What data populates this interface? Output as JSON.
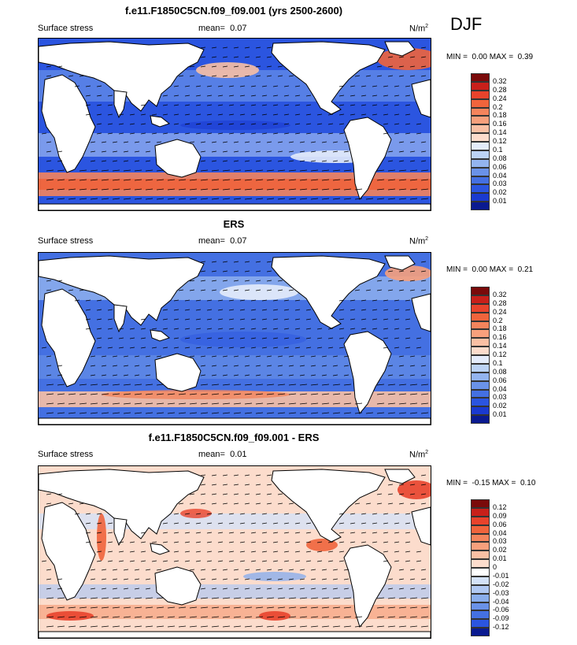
{
  "season": "DJF",
  "colors": {
    "land": "#ffffff",
    "ocean_low": "#2b55e0",
    "ocean_mid": "#bcd3f5",
    "ocean_high": "#e8603c"
  },
  "panels": [
    {
      "title": "f.e11.F1850C5CN.f09_f09.001 (yrs 2500-2600)",
      "left_label": "Surface stress",
      "mean_label": "mean=",
      "mean_value": "0.07",
      "units": "N/m",
      "units_sup": "2",
      "min_label": "MIN =",
      "min_value": "0.00",
      "max_label": "MAX =",
      "max_value": "0.39",
      "colorbar": {
        "labels": [
          "0.32",
          "0.28",
          "0.24",
          "0.2",
          "0.18",
          "0.16",
          "0.14",
          "0.12",
          "0.1",
          "0.08",
          "0.06",
          "0.04",
          "0.03",
          "0.02",
          "0.01"
        ],
        "colors": [
          "#7a0a0a",
          "#c8201a",
          "#e8432c",
          "#f0643c",
          "#f4845c",
          "#f7a07c",
          "#fac0a4",
          "#fcdccc",
          "#e4ecfb",
          "#bcd3f5",
          "#93b4ef",
          "#6a92e8",
          "#4470e2",
          "#2b55e0",
          "#1a3ad0",
          "#0a1a90"
        ]
      }
    },
    {
      "title": "ERS",
      "left_label": "Surface stress",
      "mean_label": "mean=",
      "mean_value": "0.07",
      "units": "N/m",
      "units_sup": "2",
      "min_label": "MIN =",
      "min_value": "0.00",
      "max_label": "MAX =",
      "max_value": "0.21",
      "colorbar": {
        "labels": [
          "0.32",
          "0.28",
          "0.24",
          "0.2",
          "0.18",
          "0.16",
          "0.14",
          "0.12",
          "0.1",
          "0.08",
          "0.06",
          "0.04",
          "0.03",
          "0.02",
          "0.01"
        ],
        "colors": [
          "#7a0a0a",
          "#c8201a",
          "#e8432c",
          "#f0643c",
          "#f4845c",
          "#f7a07c",
          "#fac0a4",
          "#fcdccc",
          "#e4ecfb",
          "#bcd3f5",
          "#93b4ef",
          "#6a92e8",
          "#4470e2",
          "#2b55e0",
          "#1a3ad0",
          "#0a1a90"
        ]
      }
    },
    {
      "title": "f.e11.F1850C5CN.f09_f09.001 - ERS",
      "left_label": "Surface stress",
      "mean_label": "mean=",
      "mean_value": "0.01",
      "units": "N/m",
      "units_sup": "2",
      "min_label": "MIN =",
      "min_value": "-0.15",
      "max_label": "MAX =",
      "max_value": "0.10",
      "colorbar": {
        "labels": [
          "0.12",
          "0.09",
          "0.06",
          "0.04",
          "0.03",
          "0.02",
          "0.01",
          "0",
          "-0.01",
          "-0.02",
          "-0.03",
          "-0.04",
          "-0.06",
          "-0.09",
          "-0.12"
        ],
        "colors": [
          "#7a0a0a",
          "#c8201a",
          "#e8432c",
          "#f0643c",
          "#f4845c",
          "#f7a07c",
          "#fac0a4",
          "#fcdccc",
          "#ffffff",
          "#d4e2f8",
          "#b0c8f2",
          "#8aaeec",
          "#6a92e8",
          "#4470e2",
          "#2b55e0",
          "#0a1a90"
        ]
      }
    }
  ],
  "chart_data": [
    {
      "type": "heatmap",
      "title": "f.e11.F1850C5CN.f09_f09.001 (yrs 2500-2600)",
      "variable": "Surface stress",
      "units": "N/m2",
      "mean": 0.07,
      "min": 0.0,
      "max": 0.39,
      "levels": [
        0.01,
        0.02,
        0.03,
        0.04,
        0.06,
        0.08,
        0.1,
        0.12,
        0.14,
        0.16,
        0.18,
        0.2,
        0.24,
        0.28,
        0.32
      ]
    },
    {
      "type": "heatmap",
      "title": "ERS",
      "variable": "Surface stress",
      "units": "N/m2",
      "mean": 0.07,
      "min": 0.0,
      "max": 0.21,
      "levels": [
        0.01,
        0.02,
        0.03,
        0.04,
        0.06,
        0.08,
        0.1,
        0.12,
        0.14,
        0.16,
        0.18,
        0.2,
        0.24,
        0.28,
        0.32
      ]
    },
    {
      "type": "heatmap",
      "title": "f.e11.F1850C5CN.f09_f09.001 - ERS",
      "variable": "Surface stress",
      "units": "N/m2",
      "mean": 0.01,
      "min": -0.15,
      "max": 0.1,
      "levels": [
        -0.12,
        -0.09,
        -0.06,
        -0.04,
        -0.03,
        -0.02,
        -0.01,
        0,
        0.01,
        0.02,
        0.03,
        0.04,
        0.06,
        0.09,
        0.12
      ]
    }
  ]
}
